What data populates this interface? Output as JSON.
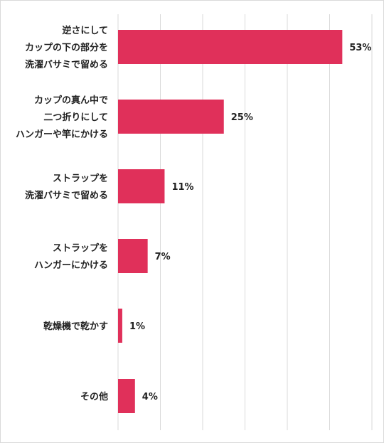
{
  "chart_data": {
    "type": "bar",
    "orientation": "horizontal",
    "categories": [
      [
        "逆さにして",
        "カップの下の部分を",
        "洗濯バサミで留める"
      ],
      [
        "カップの真ん中で",
        "二つ折りにして",
        "ハンガーや竿にかける"
      ],
      [
        "ストラップを",
        "洗濯バサミで留める"
      ],
      [
        "ストラップを",
        "ハンガーにかける"
      ],
      [
        "乾燥機で乾かす"
      ],
      [
        "その他"
      ]
    ],
    "values": [
      53,
      25,
      11,
      7,
      1,
      4
    ],
    "value_labels": [
      "53%",
      "25%",
      "11%",
      "7%",
      "1%",
      "4%"
    ],
    "xlim": [
      0,
      60
    ],
    "grid": true,
    "bar_color": "#e0305a",
    "grid_color": "#d9d9d9",
    "title": "",
    "xlabel": "",
    "ylabel": ""
  }
}
